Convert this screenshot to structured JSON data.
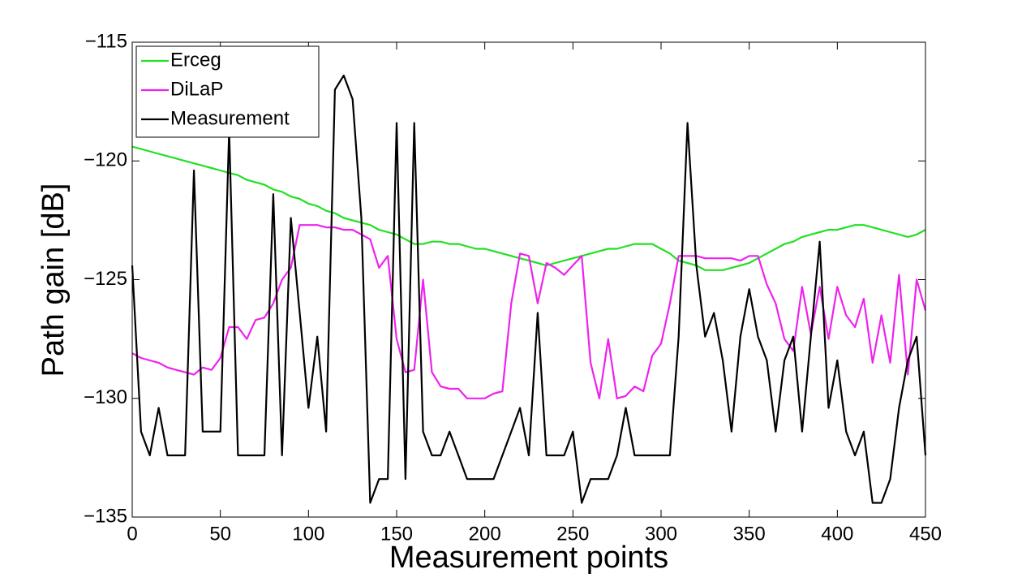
{
  "chart_data": {
    "type": "line",
    "xlabel": "Measurement points",
    "ylabel": "Path gain [dB]",
    "xlim": [
      0,
      450
    ],
    "ylim": [
      -135,
      -115
    ],
    "xticks": [
      0,
      50,
      100,
      150,
      200,
      250,
      300,
      350,
      400,
      450
    ],
    "yticks": [
      {
        "value": -135,
        "label": "−135"
      },
      {
        "value": -130,
        "label": "−130"
      },
      {
        "value": -125,
        "label": "−125"
      },
      {
        "value": -120,
        "label": "−120"
      },
      {
        "value": -115,
        "label": "−115"
      }
    ],
    "legend": "upper left",
    "x": [
      0,
      5,
      10,
      15,
      20,
      25,
      30,
      35,
      40,
      45,
      50,
      55,
      60,
      65,
      70,
      75,
      80,
      85,
      90,
      95,
      100,
      105,
      110,
      115,
      120,
      125,
      130,
      135,
      140,
      145,
      150,
      155,
      160,
      165,
      170,
      175,
      180,
      185,
      190,
      195,
      200,
      205,
      210,
      215,
      220,
      225,
      230,
      235,
      240,
      245,
      250,
      255,
      260,
      265,
      270,
      275,
      280,
      285,
      290,
      295,
      300,
      305,
      310,
      315,
      320,
      325,
      330,
      335,
      340,
      345,
      350,
      355,
      360,
      365,
      370,
      375,
      380,
      385,
      390,
      395,
      400,
      405,
      410,
      415,
      420,
      425,
      430,
      435,
      440,
      445,
      450
    ],
    "series": [
      {
        "name": "Erceg",
        "color": "#22e022",
        "values": [
          -119.4,
          -119.5,
          -119.6,
          -119.7,
          -119.8,
          -119.9,
          -120.0,
          -120.1,
          -120.2,
          -120.3,
          -120.4,
          -120.5,
          -120.6,
          -120.8,
          -120.9,
          -121.0,
          -121.2,
          -121.3,
          -121.5,
          -121.6,
          -121.8,
          -121.9,
          -122.1,
          -122.2,
          -122.4,
          -122.5,
          -122.6,
          -122.7,
          -122.9,
          -123.0,
          -123.1,
          -123.3,
          -123.5,
          -123.5,
          -123.4,
          -123.4,
          -123.5,
          -123.5,
          -123.6,
          -123.7,
          -123.7,
          -123.8,
          -123.9,
          -124.0,
          -124.1,
          -124.2,
          -124.3,
          -124.4,
          -124.3,
          -124.2,
          -124.1,
          -124.0,
          -123.9,
          -123.8,
          -123.7,
          -123.7,
          -123.6,
          -123.5,
          -123.5,
          -123.5,
          -123.7,
          -123.9,
          -124.2,
          -124.3,
          -124.4,
          -124.6,
          -124.6,
          -124.6,
          -124.5,
          -124.4,
          -124.3,
          -124.1,
          -123.9,
          -123.7,
          -123.5,
          -123.4,
          -123.2,
          -123.1,
          -123.0,
          -122.9,
          -122.9,
          -122.8,
          -122.7,
          -122.7,
          -122.8,
          -122.9,
          -123.0,
          -123.1,
          -123.2,
          -123.1,
          -122.9
        ]
      },
      {
        "name": "DiLaP",
        "color": "#ee22ee",
        "values": [
          -128.1,
          -128.3,
          -128.4,
          -128.5,
          -128.7,
          -128.8,
          -128.9,
          -129.0,
          -128.7,
          -128.8,
          -128.3,
          -127.0,
          -127.0,
          -127.5,
          -126.7,
          -126.6,
          -126.0,
          -125.0,
          -124.5,
          -122.7,
          -122.7,
          -122.7,
          -122.8,
          -122.8,
          -122.9,
          -122.9,
          -123.1,
          -123.3,
          -124.5,
          -124.0,
          -127.5,
          -128.9,
          -128.8,
          -125.0,
          -128.9,
          -129.5,
          -129.6,
          -129.6,
          -130.0,
          -130.0,
          -130.0,
          -129.8,
          -129.7,
          -126.0,
          -123.9,
          -124.0,
          -126.0,
          -124.3,
          -124.5,
          -124.8,
          -124.4,
          -124.0,
          -128.5,
          -130.0,
          -127.5,
          -130.0,
          -129.9,
          -129.5,
          -129.7,
          -128.2,
          -127.7,
          -126.0,
          -124.0,
          -124.0,
          -124.0,
          -124.1,
          -124.1,
          -124.1,
          -124.1,
          -124.2,
          -124.0,
          -124.0,
          -125.2,
          -126.0,
          -127.5,
          -128.0,
          -125.3,
          -127.3,
          -125.3,
          -127.5,
          -125.3,
          -126.5,
          -127.0,
          -125.8,
          -128.5,
          -126.5,
          -128.5,
          -124.8,
          -129.0,
          -125.0,
          -126.3
        ]
      },
      {
        "name": "Measurement",
        "color": "#000000",
        "values": [
          -124.4,
          -131.4,
          -132.4,
          -130.4,
          -132.4,
          -132.4,
          -132.4,
          -120.4,
          -131.4,
          -131.4,
          -131.4,
          -118.7,
          -132.4,
          -132.4,
          -132.4,
          -132.4,
          -121.4,
          -132.4,
          -122.4,
          -126.4,
          -130.4,
          -127.4,
          -131.4,
          -117.0,
          -116.4,
          -117.4,
          -122.4,
          -134.4,
          -133.4,
          -133.4,
          -118.4,
          -133.4,
          -118.4,
          -131.4,
          -132.4,
          -132.4,
          -131.4,
          -132.4,
          -133.4,
          -133.4,
          -133.4,
          -133.4,
          -132.4,
          -131.4,
          -130.4,
          -132.4,
          -126.4,
          -132.4,
          -132.4,
          -132.4,
          -131.4,
          -134.4,
          -133.4,
          -133.4,
          -133.4,
          -132.4,
          -130.4,
          -132.4,
          -132.4,
          -132.4,
          -132.4,
          -132.4,
          -127.4,
          -118.4,
          -124.4,
          -127.4,
          -126.4,
          -128.4,
          -131.4,
          -127.4,
          -125.4,
          -127.4,
          -128.4,
          -131.4,
          -128.4,
          -127.4,
          -131.4,
          -127.4,
          -123.4,
          -130.4,
          -128.4,
          -131.4,
          -132.4,
          -131.4,
          -134.4,
          -134.4,
          -133.4,
          -130.4,
          -128.4,
          -127.4,
          -132.4
        ]
      }
    ]
  }
}
